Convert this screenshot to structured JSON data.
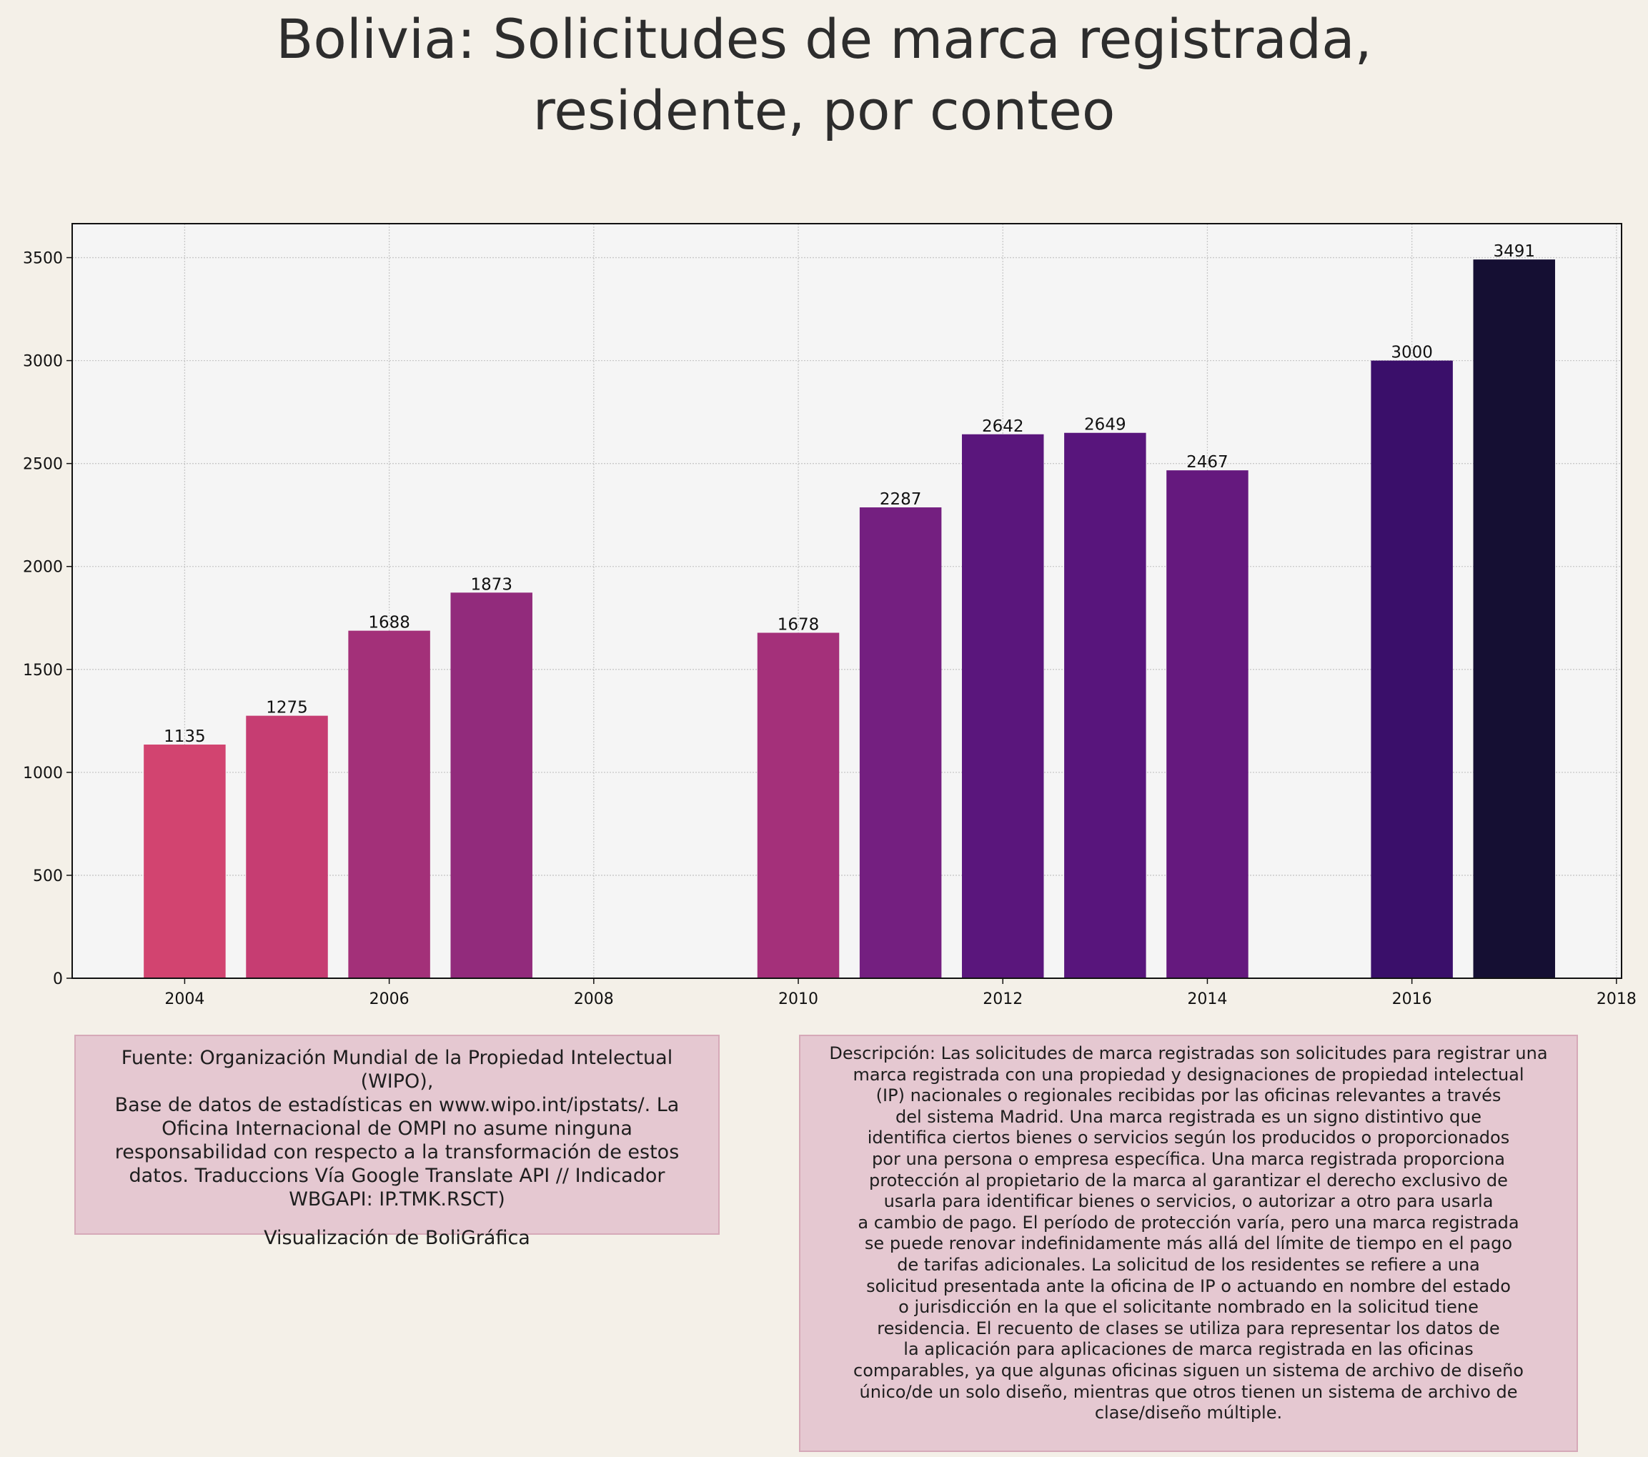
{
  "title_lines": [
    "Bolivia:  Solicitudes de marca registrada,",
    "residente, por conteo"
  ],
  "chart_data": {
    "type": "bar",
    "title": "Bolivia:  Solicitudes de marca registrada, residente, por conteo",
    "xlabel": "",
    "ylabel": "",
    "x": [
      2004,
      2005,
      2006,
      2007,
      2010,
      2011,
      2012,
      2013,
      2014,
      2016,
      2017
    ],
    "values": [
      1135,
      1275,
      1688,
      1873,
      1678,
      2287,
      2642,
      2649,
      2467,
      3000,
      3491
    ],
    "colors": [
      "#d24470",
      "#c63d72",
      "#a33079",
      "#922b7c",
      "#a4307a",
      "#741f80",
      "#5a167c",
      "#58157c",
      "#65197e",
      "#3a0f6a",
      "#150f33"
    ],
    "xlim": [
      2002.9,
      2018.05
    ],
    "ylim": [
      0,
      3665
    ],
    "xticks": [
      2004,
      2006,
      2008,
      2010,
      2012,
      2014,
      2016,
      2018
    ],
    "yticks": [
      0,
      500,
      1000,
      1500,
      2000,
      2500,
      3000,
      3500
    ],
    "grid": true,
    "bar_labels": true
  },
  "source_box": {
    "lines": [
      "Fuente: Organización Mundial de la Propiedad Intelectual (WIPO),",
      "Base de datos de estadísticas en www.wipo.int/ipstats/. La",
      "Oficina Internacional de OMPI no asume ninguna",
      "responsabilidad con respecto a la transformación de estos",
      "datos. Traduccions Vía Google Translate API // Indicador",
      "WBGAPI: IP.TMK.RSCT)"
    ],
    "credit": "Visualización de BoliGráfica"
  },
  "description_box": {
    "lines": [
      "Descripción: Las solicitudes de marca registradas son solicitudes para registrar una",
      "marca registrada con una propiedad y designaciones de propiedad intelectual",
      "(IP) nacionales o regionales recibidas por las oficinas relevantes a través",
      "del sistema Madrid. Una marca registrada es un signo distintivo que",
      "identifica ciertos bienes o servicios según los producidos o proporcionados",
      "por una persona o empresa específica. Una marca registrada proporciona",
      "protección al propietario de la marca al garantizar el derecho exclusivo de",
      "usarla para identificar bienes o servicios, o autorizar a otro para usarla",
      "a cambio de pago. El período de protección varía, pero una marca registrada",
      "se puede renovar indefinidamente más allá del límite de tiempo en el pago",
      "de tarifas adicionales. La solicitud de los residentes se refiere a una",
      "solicitud presentada ante la oficina de IP o actuando en nombre del estado",
      "o jurisdicción en la que el solicitante nombrado en la solicitud tiene",
      "residencia. El recuento de clases se utiliza para representar los datos de",
      "la aplicación para aplicaciones de marca registrada en las oficinas",
      "comparables, ya que algunas oficinas siguen un sistema de archivo de diseño",
      "único/de un solo diseño, mientras que otros tienen un sistema de archivo de",
      "clase/diseño múltiple."
    ]
  }
}
